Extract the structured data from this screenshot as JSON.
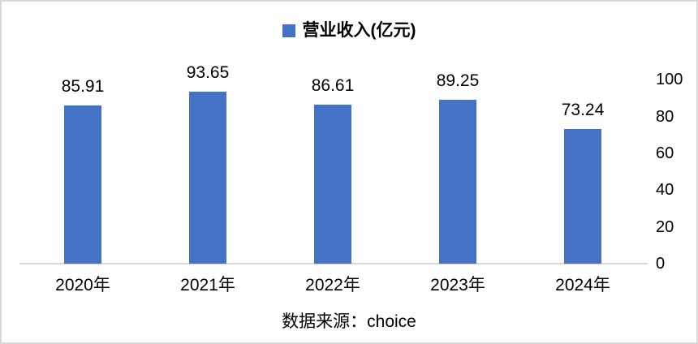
{
  "legend": {
    "label": "营业收入(亿元)"
  },
  "chart_data": {
    "type": "bar",
    "title": "",
    "categories": [
      "2020年",
      "2021年",
      "2022年",
      "2023年",
      "2024年"
    ],
    "series": [
      {
        "name": "营业收入(亿元)",
        "values": [
          85.91,
          93.65,
          86.61,
          89.25,
          73.24
        ]
      }
    ],
    "data_labels": [
      "85.91",
      "93.65",
      "86.61",
      "89.25",
      "73.24"
    ],
    "xlabel": "",
    "ylabel": "",
    "ylim": [
      0,
      100
    ],
    "y_ticks": [
      100,
      80,
      60,
      40,
      20,
      0
    ],
    "y_axis_side": "right",
    "grid": false,
    "legend_position": "top",
    "bar_color": "#4472C4",
    "axis_line_color": "#d9d9d9"
  },
  "caption": "数据来源：choice"
}
